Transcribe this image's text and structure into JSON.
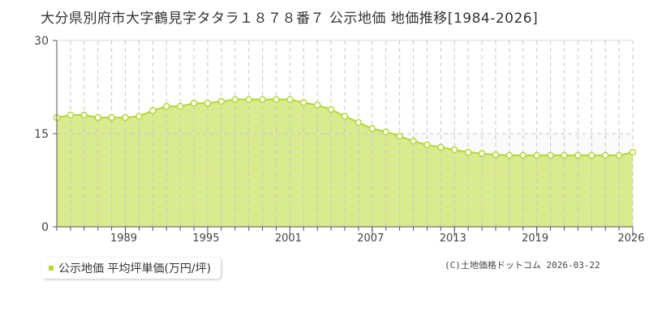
{
  "title": "大分県別府市大字鶴見字タタラ１８７８番７  公示地価  地価推移[1984-2026]",
  "legend": {
    "label": "公示地価 平均坪単価(万円/坪)",
    "color": "#b6d633"
  },
  "credit": "(C)土地価格ドットコム 2026-03-22",
  "colors": {
    "fill": "#d9ea8f",
    "line": "#b6d633",
    "grid": "#c8c8c8",
    "axis": "#555555"
  },
  "chart_data": {
    "type": "area",
    "title": "大分県別府市大字鶴見字タタラ１８７８番７  公示地価  地価推移[1984-2026]",
    "xlabel": "",
    "ylabel": "",
    "ylim": [
      0,
      30
    ],
    "yticks": [
      0,
      15,
      30
    ],
    "xticks": [
      1989,
      1995,
      2001,
      2007,
      2013,
      2019,
      2026
    ],
    "grid": true,
    "legend_position": "bottom-left",
    "series": [
      {
        "name": "公示地価 平均坪単価(万円/坪)",
        "x": [
          1984,
          1985,
          1986,
          1987,
          1988,
          1989,
          1990,
          1991,
          1992,
          1993,
          1994,
          1995,
          1996,
          1997,
          1998,
          1999,
          2000,
          2001,
          2002,
          2003,
          2004,
          2005,
          2006,
          2007,
          2008,
          2009,
          2010,
          2011,
          2012,
          2013,
          2014,
          2015,
          2016,
          2017,
          2018,
          2019,
          2020,
          2021,
          2022,
          2023,
          2024,
          2025,
          2026
        ],
        "values": [
          17.6,
          18.0,
          18.0,
          17.6,
          17.6,
          17.6,
          17.8,
          18.7,
          19.4,
          19.4,
          19.9,
          19.9,
          20.2,
          20.5,
          20.5,
          20.5,
          20.5,
          20.5,
          20.0,
          19.6,
          18.9,
          17.8,
          16.8,
          15.8,
          15.3,
          14.6,
          13.8,
          13.2,
          12.8,
          12.4,
          12.0,
          11.8,
          11.6,
          11.5,
          11.5,
          11.5,
          11.5,
          11.5,
          11.5,
          11.5,
          11.5,
          11.5,
          12.0
        ]
      }
    ]
  }
}
